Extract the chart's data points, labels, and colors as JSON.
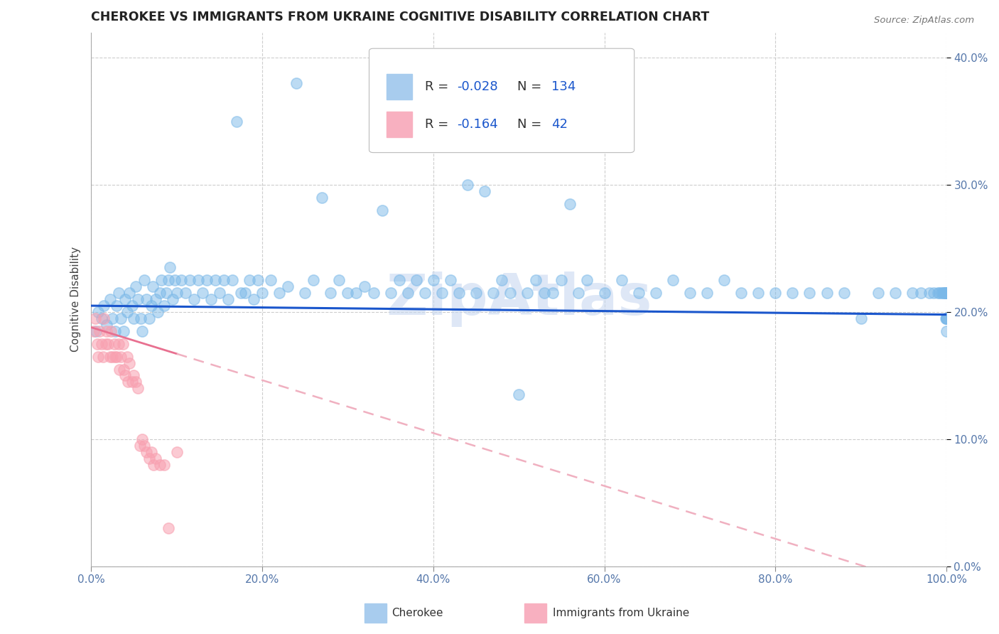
{
  "title": "CHEROKEE VS IMMIGRANTS FROM UKRAINE COGNITIVE DISABILITY CORRELATION CHART",
  "source": "Source: ZipAtlas.com",
  "ylabel": "Cognitive Disability",
  "xlim": [
    0.0,
    1.0
  ],
  "ylim": [
    0.0,
    0.42
  ],
  "ytick_vals": [
    0.0,
    0.1,
    0.2,
    0.3,
    0.4
  ],
  "xtick_vals": [
    0.0,
    0.2,
    0.4,
    0.6,
    0.8,
    1.0
  ],
  "blue_dot_color": "#7ab8e8",
  "pink_dot_color": "#f8a0b0",
  "trend_blue_color": "#1a56cc",
  "trend_pink_solid_color": "#e87090",
  "trend_pink_dash_color": "#f0b0c0",
  "background_color": "#ffffff",
  "grid_color": "#c8c8c8",
  "watermark_color": "#c8d8f0",
  "tick_color": "#5577aa",
  "legend_r1": "-0.028",
  "legend_n1": "134",
  "legend_r2": "-0.164",
  "legend_n2": "42",
  "cherokee_x": [
    0.006,
    0.008,
    0.012,
    0.015,
    0.018,
    0.022,
    0.025,
    0.028,
    0.03,
    0.032,
    0.035,
    0.038,
    0.04,
    0.042,
    0.045,
    0.048,
    0.05,
    0.052,
    0.055,
    0.058,
    0.06,
    0.062,
    0.065,
    0.068,
    0.07,
    0.072,
    0.075,
    0.078,
    0.08,
    0.082,
    0.085,
    0.088,
    0.09,
    0.092,
    0.095,
    0.098,
    0.1,
    0.105,
    0.11,
    0.115,
    0.12,
    0.125,
    0.13,
    0.135,
    0.14,
    0.145,
    0.15,
    0.155,
    0.16,
    0.165,
    0.17,
    0.175,
    0.18,
    0.185,
    0.19,
    0.195,
    0.2,
    0.21,
    0.22,
    0.23,
    0.24,
    0.25,
    0.26,
    0.27,
    0.28,
    0.29,
    0.3,
    0.31,
    0.32,
    0.33,
    0.34,
    0.35,
    0.36,
    0.37,
    0.38,
    0.39,
    0.4,
    0.41,
    0.42,
    0.43,
    0.44,
    0.45,
    0.46,
    0.47,
    0.48,
    0.49,
    0.5,
    0.51,
    0.52,
    0.53,
    0.54,
    0.55,
    0.56,
    0.57,
    0.58,
    0.6,
    0.62,
    0.64,
    0.66,
    0.68,
    0.7,
    0.72,
    0.74,
    0.76,
    0.78,
    0.8,
    0.82,
    0.84,
    0.86,
    0.88,
    0.9,
    0.92,
    0.94,
    0.96,
    0.97,
    0.98,
    0.985,
    0.99,
    0.992,
    0.994,
    0.996,
    0.997,
    0.998,
    0.999,
    0.999,
    1.0,
    1.0,
    1.0,
    1.0,
    1.0,
    1.0,
    1.0,
    1.0,
    1.0
  ],
  "cherokee_y": [
    0.185,
    0.2,
    0.195,
    0.205,
    0.19,
    0.21,
    0.195,
    0.185,
    0.205,
    0.215,
    0.195,
    0.185,
    0.21,
    0.2,
    0.215,
    0.205,
    0.195,
    0.22,
    0.21,
    0.195,
    0.185,
    0.225,
    0.21,
    0.195,
    0.205,
    0.22,
    0.21,
    0.2,
    0.215,
    0.225,
    0.205,
    0.215,
    0.225,
    0.235,
    0.21,
    0.225,
    0.215,
    0.225,
    0.215,
    0.225,
    0.21,
    0.225,
    0.215,
    0.225,
    0.21,
    0.225,
    0.215,
    0.225,
    0.21,
    0.225,
    0.35,
    0.215,
    0.215,
    0.225,
    0.21,
    0.225,
    0.215,
    0.225,
    0.215,
    0.22,
    0.38,
    0.215,
    0.225,
    0.29,
    0.215,
    0.225,
    0.215,
    0.215,
    0.22,
    0.215,
    0.28,
    0.215,
    0.225,
    0.215,
    0.225,
    0.215,
    0.225,
    0.215,
    0.225,
    0.215,
    0.3,
    0.215,
    0.295,
    0.215,
    0.225,
    0.215,
    0.135,
    0.215,
    0.225,
    0.215,
    0.215,
    0.225,
    0.285,
    0.215,
    0.225,
    0.215,
    0.225,
    0.215,
    0.215,
    0.225,
    0.215,
    0.215,
    0.225,
    0.215,
    0.215,
    0.215,
    0.215,
    0.215,
    0.215,
    0.215,
    0.195,
    0.215,
    0.215,
    0.215,
    0.215,
    0.215,
    0.215,
    0.215,
    0.215,
    0.215,
    0.215,
    0.215,
    0.215,
    0.195,
    0.215,
    0.195,
    0.215,
    0.215,
    0.215,
    0.195,
    0.215,
    0.215,
    0.195,
    0.185
  ],
  "ukraine_x": [
    0.003,
    0.005,
    0.007,
    0.008,
    0.01,
    0.012,
    0.014,
    0.015,
    0.017,
    0.018,
    0.02,
    0.022,
    0.023,
    0.025,
    0.027,
    0.028,
    0.03,
    0.032,
    0.033,
    0.035,
    0.037,
    0.038,
    0.04,
    0.042,
    0.043,
    0.045,
    0.048,
    0.05,
    0.052,
    0.055,
    0.057,
    0.06,
    0.062,
    0.065,
    0.068,
    0.07,
    0.073,
    0.075,
    0.08,
    0.085,
    0.09,
    0.1
  ],
  "ukraine_y": [
    0.185,
    0.195,
    0.175,
    0.165,
    0.185,
    0.175,
    0.165,
    0.195,
    0.175,
    0.185,
    0.175,
    0.165,
    0.185,
    0.165,
    0.175,
    0.165,
    0.165,
    0.175,
    0.155,
    0.165,
    0.175,
    0.155,
    0.15,
    0.165,
    0.145,
    0.16,
    0.145,
    0.15,
    0.145,
    0.14,
    0.095,
    0.1,
    0.095,
    0.09,
    0.085,
    0.09,
    0.08,
    0.085,
    0.08,
    0.08,
    0.03,
    0.09
  ]
}
